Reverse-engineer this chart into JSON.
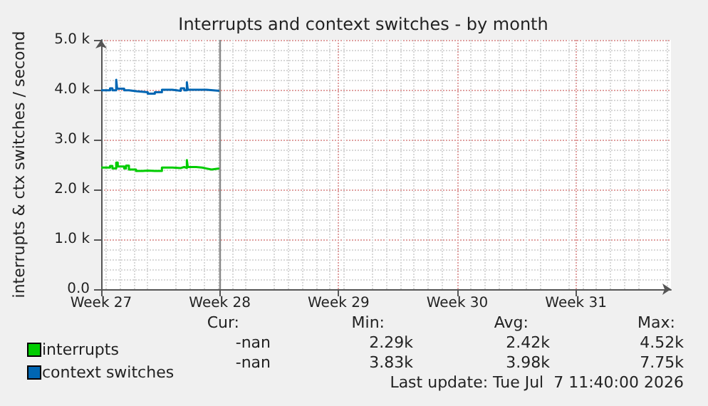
{
  "chart_data": {
    "type": "step",
    "title": "Interrupts and context switches - by month",
    "ylabel": "interrupts & ctx switches / second",
    "xlim": [
      "2026-06-29",
      "2026-08-01T14:24"
    ],
    "xticks": [
      {
        "value": "2026-06-29",
        "label": "Week 27"
      },
      {
        "value": "2026-07-06",
        "label": "Week 28"
      },
      {
        "value": "2026-07-13",
        "label": "Week 29"
      },
      {
        "value": "2026-07-20",
        "label": "Week 30"
      },
      {
        "value": "2026-07-27",
        "label": "Week 31"
      }
    ],
    "ylim": [
      0,
      5000
    ],
    "yticks": [
      {
        "value": 0,
        "label": "0.0"
      },
      {
        "value": 1000,
        "label": "1.0 k"
      },
      {
        "value": 2000,
        "label": "2.0 k"
      },
      {
        "value": 3000,
        "label": "3.0 k"
      },
      {
        "value": 4000,
        "label": "4.0 k"
      },
      {
        "value": 5000,
        "label": "5.0 k"
      }
    ],
    "grid": true,
    "legend": "bottom left",
    "ref_lines": [
      {
        "axis": "x",
        "value": "2026-07-06",
        "color": "#888888"
      }
    ],
    "series": [
      {
        "name": "interrupts",
        "color": "#00cc00",
        "x": [
          "2026-06-29T00:00",
          "2026-06-29T12:36",
          "2026-06-29T16:00",
          "2026-06-29T21:20",
          "2026-06-29T23:30",
          "2026-06-30T08:36",
          "2026-06-30T11:15",
          "2026-06-30T15:20",
          "2026-07-01T01:24",
          "2026-07-01T10:48",
          "2026-07-01T18:00",
          "2026-07-02T04:00",
          "2026-07-02T14:00",
          "2026-07-03T04:48",
          "2026-07-03T16:44",
          "2026-07-03T21:36",
          "2026-07-04T01:18",
          "2026-07-04T02:38",
          "2026-07-04T14:24",
          "2026-07-04T22:48",
          "2026-07-05T05:21",
          "2026-07-05T12:14",
          "2026-07-05T23:20"
        ],
        "values": [
          2440,
          2470,
          2420,
          2540,
          2460,
          2420,
          2480,
          2400,
          2370,
          2380,
          2370,
          2370,
          2440,
          2430,
          2450,
          2430,
          2590,
          2450,
          2440,
          2420,
          2400,
          2420,
          2420
        ]
      },
      {
        "name": "context switches",
        "color": "#0066b3",
        "x": [
          "2026-06-29T00:00",
          "2026-06-29T12:36",
          "2026-06-29T16:00",
          "2026-06-29T21:20",
          "2026-06-29T22:41",
          "2026-06-30T02:02",
          "2026-06-30T08:36",
          "2026-06-30T15:20",
          "2026-07-01T01:24",
          "2026-07-01T18:00",
          "2026-07-02T04:00",
          "2026-07-02T14:00",
          "2026-07-03T04:48",
          "2026-07-03T16:44",
          "2026-07-03T21:36",
          "2026-07-04T01:18",
          "2026-07-04T02:38",
          "2026-07-04T14:24",
          "2026-07-05T05:21",
          "2026-07-05T23:20"
        ],
        "values": [
          3990,
          4030,
          3990,
          4200,
          4020,
          4020,
          3990,
          3970,
          3950,
          3920,
          3950,
          4000,
          3980,
          4030,
          3990,
          4150,
          4000,
          4000,
          3980,
          3980
        ]
      }
    ],
    "annotations": [
      "Cur:",
      "Min:",
      "Avg:",
      "Max:",
      "-nan",
      "2.29k",
      "2.42k",
      "4.52k",
      "-nan",
      "3.83k",
      "3.98k",
      "7.75k",
      "Last update: Tue Jul  7 11:40:00 2026"
    ]
  }
}
